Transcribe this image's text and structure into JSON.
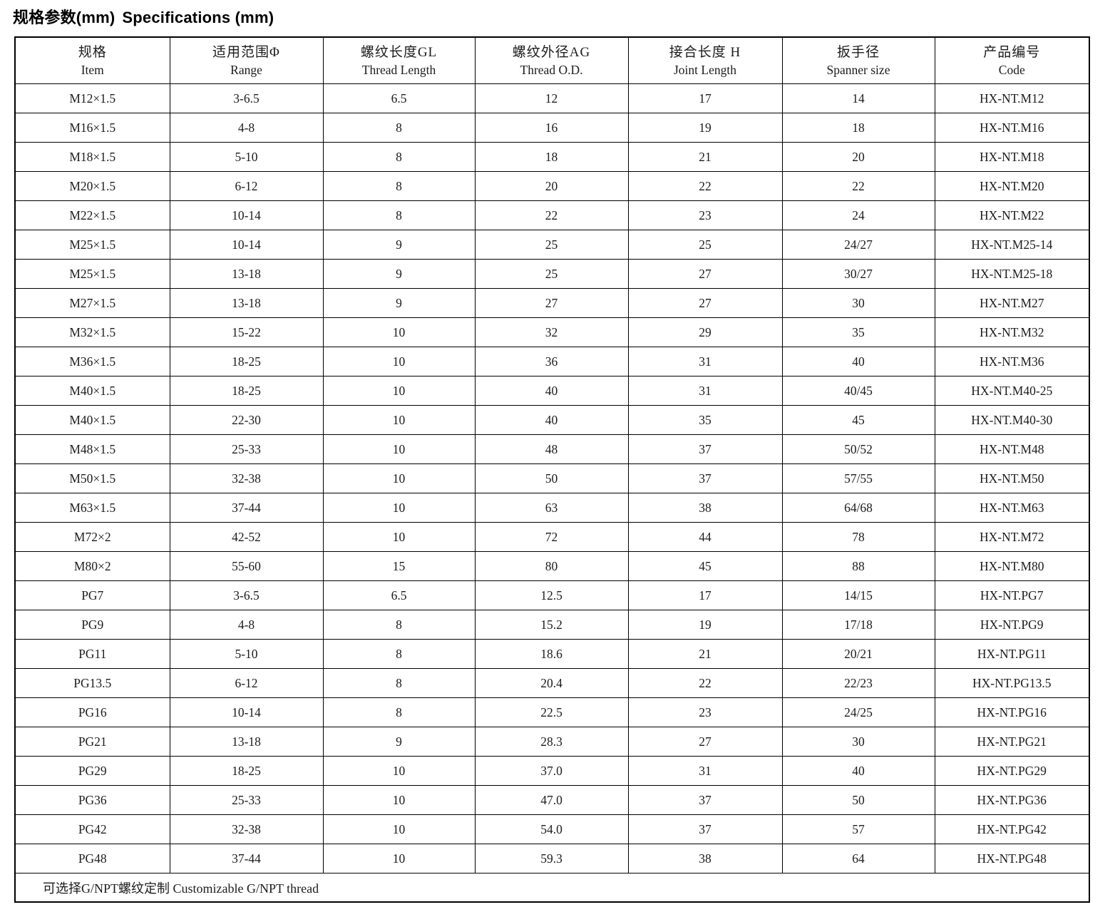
{
  "title": {
    "zh": "规格参数(mm)",
    "en": "Specifications (mm)"
  },
  "table": {
    "columns": [
      {
        "zh": "规格",
        "en": "Item"
      },
      {
        "zh": "适用范围Φ",
        "en": "Range"
      },
      {
        "zh": "螺纹长度GL",
        "en": "Thread Length"
      },
      {
        "zh": "螺纹外径AG",
        "en": "Thread O.D."
      },
      {
        "zh": "接合长度 H",
        "en": "Joint Length"
      },
      {
        "zh": "扳手径",
        "en": "Spanner size"
      },
      {
        "zh": "产品编号",
        "en": "Code"
      }
    ],
    "rows": [
      [
        "M12×1.5",
        "3-6.5",
        "6.5",
        "12",
        "17",
        "14",
        "HX-NT.M12"
      ],
      [
        "M16×1.5",
        "4-8",
        "8",
        "16",
        "19",
        "18",
        "HX-NT.M16"
      ],
      [
        "M18×1.5",
        "5-10",
        "8",
        "18",
        "21",
        "20",
        "HX-NT.M18"
      ],
      [
        "M20×1.5",
        "6-12",
        "8",
        "20",
        "22",
        "22",
        "HX-NT.M20"
      ],
      [
        "M22×1.5",
        "10-14",
        "8",
        "22",
        "23",
        "24",
        "HX-NT.M22"
      ],
      [
        "M25×1.5",
        "10-14",
        "9",
        "25",
        "25",
        "24/27",
        "HX-NT.M25-14"
      ],
      [
        "M25×1.5",
        "13-18",
        "9",
        "25",
        "27",
        "30/27",
        "HX-NT.M25-18"
      ],
      [
        "M27×1.5",
        "13-18",
        "9",
        "27",
        "27",
        "30",
        "HX-NT.M27"
      ],
      [
        "M32×1.5",
        "15-22",
        "10",
        "32",
        "29",
        "35",
        "HX-NT.M32"
      ],
      [
        "M36×1.5",
        "18-25",
        "10",
        "36",
        "31",
        "40",
        "HX-NT.M36"
      ],
      [
        "M40×1.5",
        "18-25",
        "10",
        "40",
        "31",
        "40/45",
        "HX-NT.M40-25"
      ],
      [
        "M40×1.5",
        "22-30",
        "10",
        "40",
        "35",
        "45",
        "HX-NT.M40-30"
      ],
      [
        "M48×1.5",
        "25-33",
        "10",
        "48",
        "37",
        "50/52",
        "HX-NT.M48"
      ],
      [
        "M50×1.5",
        "32-38",
        "10",
        "50",
        "37",
        "57/55",
        "HX-NT.M50"
      ],
      [
        "M63×1.5",
        "37-44",
        "10",
        "63",
        "38",
        "64/68",
        "HX-NT.M63"
      ],
      [
        "M72×2",
        "42-52",
        "10",
        "72",
        "44",
        "78",
        "HX-NT.M72"
      ],
      [
        "M80×2",
        "55-60",
        "15",
        "80",
        "45",
        "88",
        "HX-NT.M80"
      ],
      [
        "PG7",
        "3-6.5",
        "6.5",
        "12.5",
        "17",
        "14/15",
        "HX-NT.PG7"
      ],
      [
        "PG9",
        "4-8",
        "8",
        "15.2",
        "19",
        "17/18",
        "HX-NT.PG9"
      ],
      [
        "PG11",
        "5-10",
        "8",
        "18.6",
        "21",
        "20/21",
        "HX-NT.PG11"
      ],
      [
        "PG13.5",
        "6-12",
        "8",
        "20.4",
        "22",
        "22/23",
        "HX-NT.PG13.5"
      ],
      [
        "PG16",
        "10-14",
        "8",
        "22.5",
        "23",
        "24/25",
        "HX-NT.PG16"
      ],
      [
        "PG21",
        "13-18",
        "9",
        "28.3",
        "27",
        "30",
        "HX-NT.PG21"
      ],
      [
        "PG29",
        "18-25",
        "10",
        "37.0",
        "31",
        "40",
        "HX-NT.PG29"
      ],
      [
        "PG36",
        "25-33",
        "10",
        "47.0",
        "37",
        "50",
        "HX-NT.PG36"
      ],
      [
        "PG42",
        "32-38",
        "10",
        "54.0",
        "37",
        "57",
        "HX-NT.PG42"
      ],
      [
        "PG48",
        "37-44",
        "10",
        "59.3",
        "38",
        "64",
        "HX-NT.PG48"
      ]
    ],
    "footnote": "可选择G/NPT螺纹定制 Customizable G/NPT thread"
  }
}
